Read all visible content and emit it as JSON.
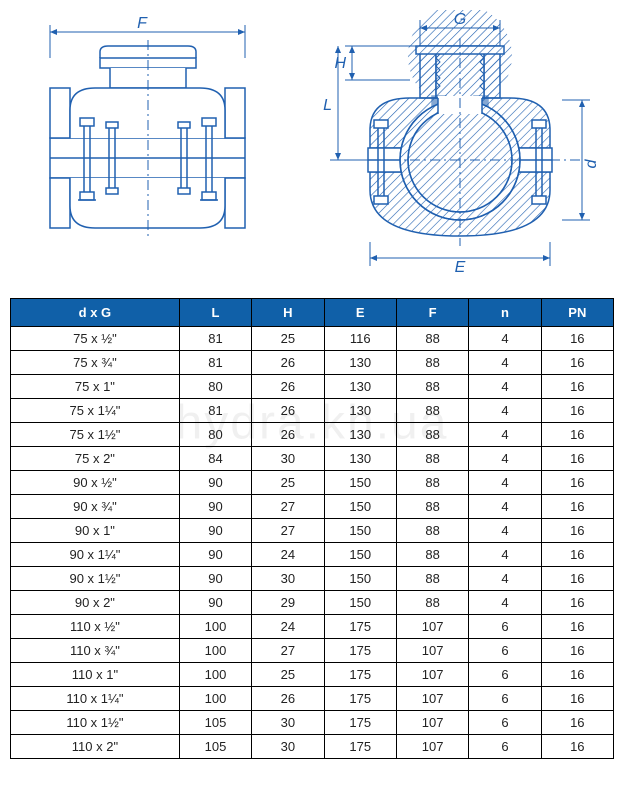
{
  "diagram": {
    "stroke": "#2060b0",
    "fill": "#ffffff",
    "hatch": "#2060b0",
    "labels": {
      "F": "F",
      "G": "G",
      "H": "H",
      "L": "L",
      "E": "E",
      "d": "d"
    }
  },
  "table": {
    "header_bg": "#1060a8",
    "header_fg": "#ffffff",
    "border": "#000000",
    "columns": [
      "d x G",
      "L",
      "H",
      "E",
      "F",
      "n",
      "PN"
    ],
    "rows": [
      [
        "75 x ½\"",
        "81",
        "25",
        "116",
        "88",
        "4",
        "16"
      ],
      [
        "75 x ¾\"",
        "81",
        "26",
        "130",
        "88",
        "4",
        "16"
      ],
      [
        "75 x 1\"",
        "80",
        "26",
        "130",
        "88",
        "4",
        "16"
      ],
      [
        "75 x 1¼\"",
        "81",
        "26",
        "130",
        "88",
        "4",
        "16"
      ],
      [
        "75 x 1½\"",
        "80",
        "26",
        "130",
        "88",
        "4",
        "16"
      ],
      [
        "75 x 2\"",
        "84",
        "30",
        "130",
        "88",
        "4",
        "16"
      ],
      [
        "90 x ½\"",
        "90",
        "25",
        "150",
        "88",
        "4",
        "16"
      ],
      [
        "90 x ¾\"",
        "90",
        "27",
        "150",
        "88",
        "4",
        "16"
      ],
      [
        "90 x 1\"",
        "90",
        "27",
        "150",
        "88",
        "4",
        "16"
      ],
      [
        "90 x 1¼\"",
        "90",
        "24",
        "150",
        "88",
        "4",
        "16"
      ],
      [
        "90 x 1½\"",
        "90",
        "30",
        "150",
        "88",
        "4",
        "16"
      ],
      [
        "90 x 2\"",
        "90",
        "29",
        "150",
        "88",
        "4",
        "16"
      ],
      [
        "110 x ½\"",
        "100",
        "24",
        "175",
        "107",
        "6",
        "16"
      ],
      [
        "110 x ¾\"",
        "100",
        "27",
        "175",
        "107",
        "6",
        "16"
      ],
      [
        "110 x 1\"",
        "100",
        "25",
        "175",
        "107",
        "6",
        "16"
      ],
      [
        "110 x 1¼\"",
        "100",
        "26",
        "175",
        "107",
        "6",
        "16"
      ],
      [
        "110 x 1½\"",
        "105",
        "30",
        "175",
        "107",
        "6",
        "16"
      ],
      [
        "110 x 2\"",
        "105",
        "30",
        "175",
        "107",
        "6",
        "16"
      ]
    ]
  },
  "watermark": "hydra.kh.ua"
}
